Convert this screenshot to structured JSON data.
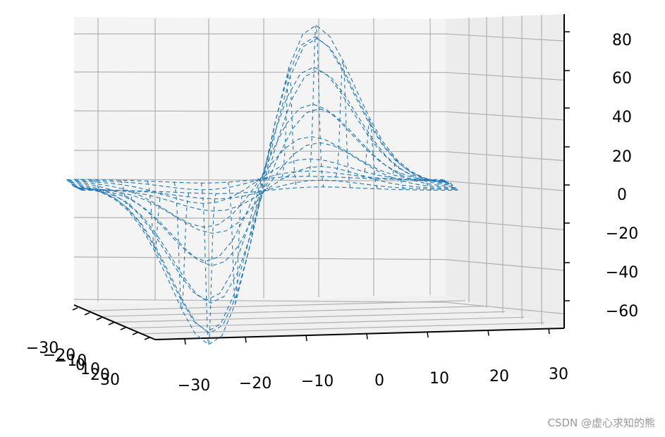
{
  "chart_data": {
    "type": "surface-wireframe-3d",
    "title": "",
    "xlabel": "",
    "ylabel": "",
    "zlabel": "",
    "x_ticks": [
      "−30",
      "−20",
      "−10",
      "0",
      "10",
      "20",
      "30"
    ],
    "y_ticks": [
      "−30",
      "−20",
      "−10",
      "0",
      "10",
      "20",
      "30"
    ],
    "y_ticks_shown": [
      "−30",
      "−20",
      "−10",
      "0",
      "10",
      "20",
      "30"
    ],
    "z_ticks": [
      "80",
      "60",
      "40",
      "20",
      "0",
      "−20",
      "−40",
      "−60"
    ],
    "xlim": [
      -30,
      30
    ],
    "ylim": [
      -30,
      30
    ],
    "zlim": [
      -70,
      90
    ],
    "z_peak": 87,
    "z_trough": -67,
    "peak_x": 5,
    "trough_x": -10,
    "line_style": "dashed",
    "grid": true,
    "pane_color": "#f4f4f4",
    "colors": {
      "line": "#1f77b4",
      "grid": "#b0b0b0",
      "axis": "#000000"
    }
  },
  "watermark": "CSDN @虚心求知的熊"
}
